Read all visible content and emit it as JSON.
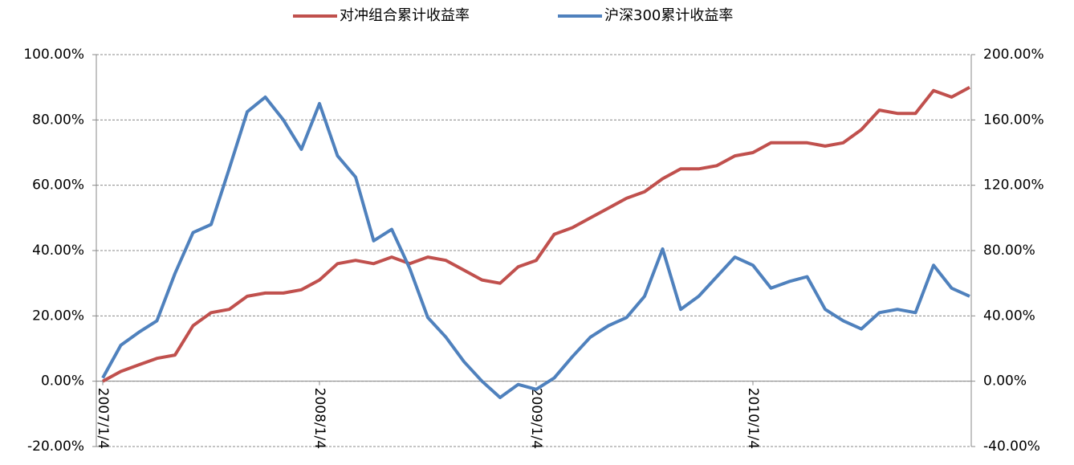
{
  "chart_data": {
    "type": "line",
    "categories": [
      "2007/1/4",
      null,
      null,
      null,
      null,
      null,
      null,
      null,
      null,
      null,
      null,
      null,
      "2008/1/4",
      null,
      null,
      null,
      null,
      null,
      null,
      null,
      null,
      null,
      null,
      null,
      "2009/1/4",
      null,
      null,
      null,
      null,
      null,
      null,
      null,
      null,
      null,
      null,
      null,
      "2010/1/4",
      null,
      null,
      null,
      null,
      null,
      null,
      null,
      null,
      null,
      null,
      null,
      null
    ],
    "series": [
      {
        "name": "对冲组合累计收益率",
        "color": "#c0504d",
        "values": [
          0,
          3,
          5,
          7,
          8,
          17,
          21,
          22,
          26,
          27,
          27,
          28,
          31,
          36,
          37,
          36,
          38,
          36,
          38,
          37,
          34,
          31,
          30,
          35,
          37,
          45,
          47,
          50,
          53,
          56,
          58,
          62,
          65,
          65,
          66,
          69,
          70,
          73,
          73,
          73,
          72,
          73,
          77,
          83,
          82,
          82,
          89,
          87,
          90
        ]
      },
      {
        "name": "沪深300累计收益率",
        "color": "#4f81bd",
        "axis": "y2",
        "values": [
          2,
          22,
          30,
          37,
          66,
          91,
          96,
          130,
          165,
          174,
          160,
          142,
          170,
          138,
          125,
          86,
          93,
          69,
          39,
          27,
          12,
          0,
          -10,
          -2,
          -5,
          2,
          15,
          27,
          34,
          39,
          52,
          81,
          44,
          52,
          64,
          76,
          71,
          57,
          61,
          64,
          44,
          37,
          32,
          42,
          44,
          42,
          71,
          57,
          52
        ]
      }
    ],
    "ylim": [
      -20,
      100
    ],
    "yticks": [
      {
        "value": -20,
        "label": "-20.00%"
      },
      {
        "value": 0,
        "label": "0.00%"
      },
      {
        "value": 20,
        "label": "20.00%"
      },
      {
        "value": 40,
        "label": "40.00%"
      },
      {
        "value": 60,
        "label": "60.00%"
      },
      {
        "value": 80,
        "label": "80.00%"
      },
      {
        "value": 100,
        "label": "100.00%"
      }
    ],
    "y2lim": [
      -40,
      200
    ],
    "y2ticks": [
      {
        "value": -40,
        "label": "-40.00%"
      },
      {
        "value": 0,
        "label": "0.00%"
      },
      {
        "value": 40,
        "label": "40.00%"
      },
      {
        "value": 80,
        "label": "80.00%"
      },
      {
        "value": 120,
        "label": "120.00%"
      },
      {
        "value": 160,
        "label": "160.00%"
      },
      {
        "value": 200,
        "label": "200.00%"
      }
    ],
    "grid": true,
    "legend": "top"
  }
}
